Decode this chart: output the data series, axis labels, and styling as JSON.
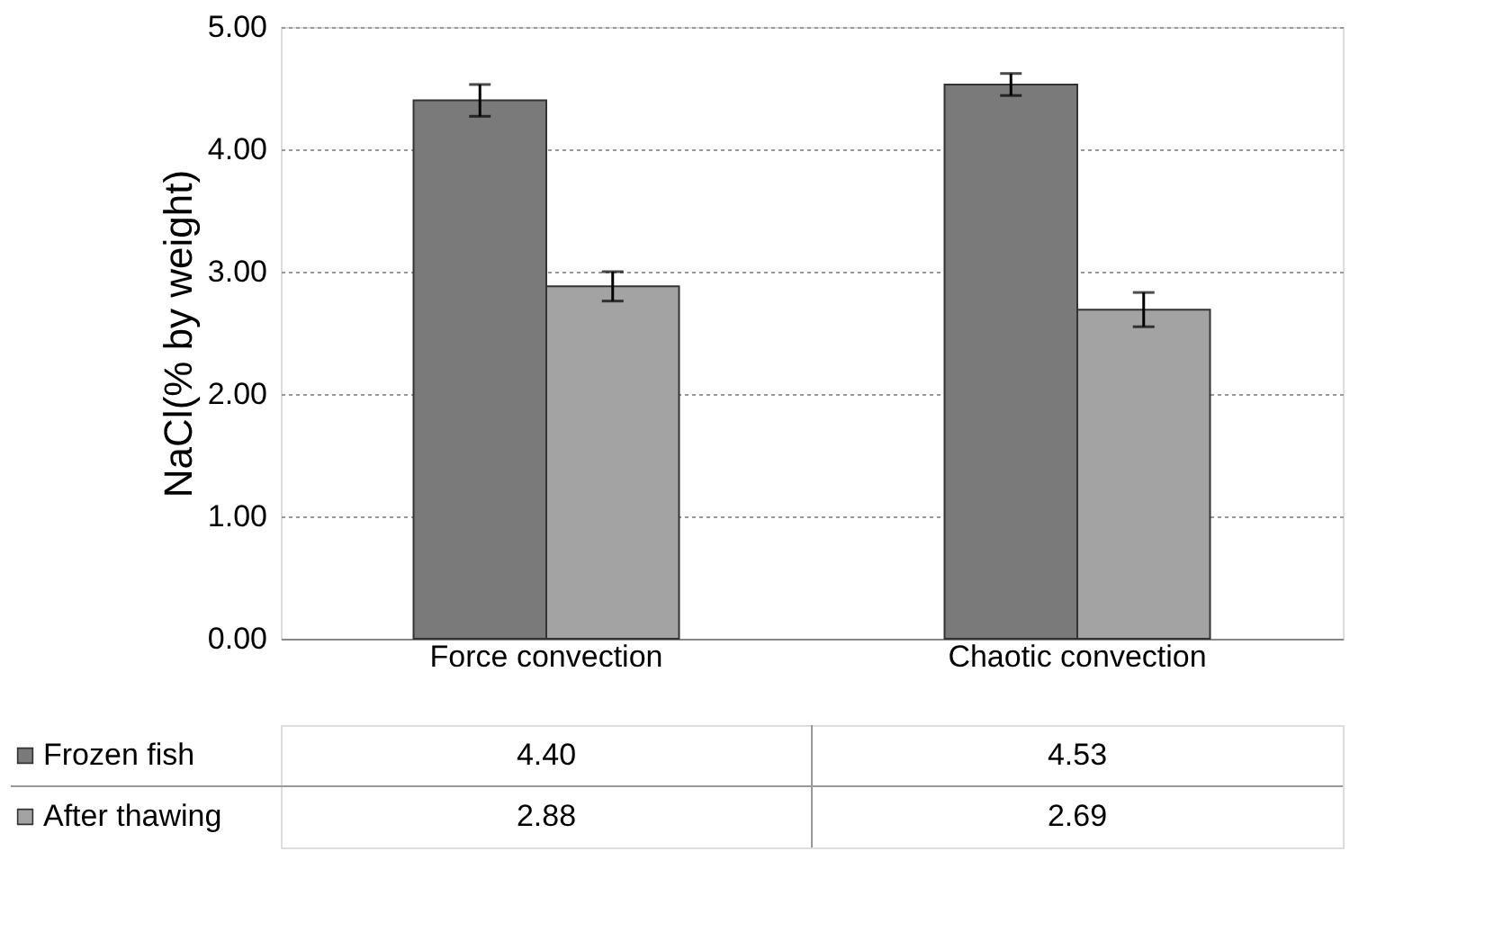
{
  "chart_data": {
    "type": "bar",
    "ylabel": "NaCl(% by weight)",
    "categories": [
      "Force convection",
      "Chaotic convection"
    ],
    "series": [
      {
        "name": "Frozen fish",
        "color": "#7a7a7a",
        "values": [
          4.4,
          4.53
        ],
        "errors": [
          0.13,
          0.09
        ],
        "value_labels": [
          "4.40",
          "4.53"
        ]
      },
      {
        "name": "After thawing",
        "color": "#a3a3a3",
        "values": [
          2.88,
          2.69
        ],
        "errors": [
          0.12,
          0.14
        ],
        "value_labels": [
          "2.88",
          "2.69"
        ]
      }
    ],
    "ylim": [
      0,
      5
    ],
    "yticks": [
      {
        "value": 0,
        "label": "0.00"
      },
      {
        "value": 1,
        "label": "1.00"
      },
      {
        "value": 2,
        "label": "2.00"
      },
      {
        "value": 3,
        "label": "3.00"
      },
      {
        "value": 4,
        "label": "4.00"
      },
      {
        "value": 5,
        "label": "5.00"
      }
    ],
    "grid": "y",
    "legend": "bottom"
  }
}
